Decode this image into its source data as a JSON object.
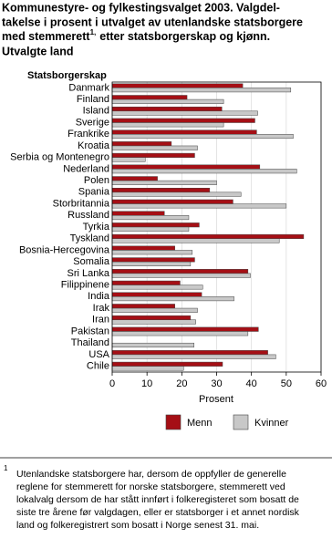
{
  "chart_data": {
    "type": "bar",
    "orientation": "horizontal",
    "title_lines": [
      "Kommunestyre- og fylkestingsvalget 2003. Valgdel-",
      "takelse i prosent i utvalget av utenlandske statsborgere",
      "med stemmerett",
      "etter statsborgerskap og kjønn.",
      "Utvalgte land"
    ],
    "title_note_ref": "1,",
    "y_label": "Statsborgerskap",
    "x_label": "Prosent",
    "categories": [
      "Danmark",
      "Finland",
      "Island",
      "Sverige",
      "Frankrike",
      "Kroatia",
      "Serbia og Montenegro",
      "Nederland",
      "Polen",
      "Spania",
      "Storbritannia",
      "Russland",
      "Tyrkia",
      "Tyskland",
      "Bosnia-Hercegovina",
      "Somalia",
      "Sri Lanka",
      "Filippinene",
      "India",
      "Irak",
      "Iran",
      "Pakistan",
      "Thailand",
      "USA",
      "Chile"
    ],
    "series": [
      {
        "name": "Menn",
        "color": "#a50f15",
        "values": [
          37.5,
          21.5,
          31.5,
          41,
          41.5,
          17,
          23.7,
          42.4,
          13,
          28,
          34.7,
          15,
          25,
          55,
          18,
          23.7,
          39,
          19.5,
          25.7,
          18,
          22.5,
          42,
          null,
          44.7,
          31.7
        ]
      },
      {
        "name": "Kvinner",
        "color": "#c8c8c8",
        "values": [
          51.3,
          32,
          41.8,
          32,
          52,
          24.5,
          9.5,
          53,
          30,
          37,
          50,
          22,
          22,
          48,
          23,
          22.5,
          39.7,
          26,
          35,
          24.5,
          24,
          39,
          23.5,
          47,
          20.5
        ]
      }
    ],
    "xlim": [
      0,
      60
    ],
    "xticks": [
      0,
      10,
      20,
      30,
      40,
      50,
      60
    ],
    "grid": true,
    "legend": "bottom",
    "footnote": {
      "marker": "1",
      "lines": [
        "Utenlandske statsborgere har, dersom de oppfyller de generelle",
        "reglene for stemmerett for norske statsborgere, stemmerett ved",
        "lokalvalg dersom de har stått innført i folkeregisteret som bosatt de",
        "siste tre årene før valgdagen, eller er statsborger i et annet nordisk",
        "land og folkeregistrert som bosatt i Norge senest 31. mai."
      ]
    }
  }
}
